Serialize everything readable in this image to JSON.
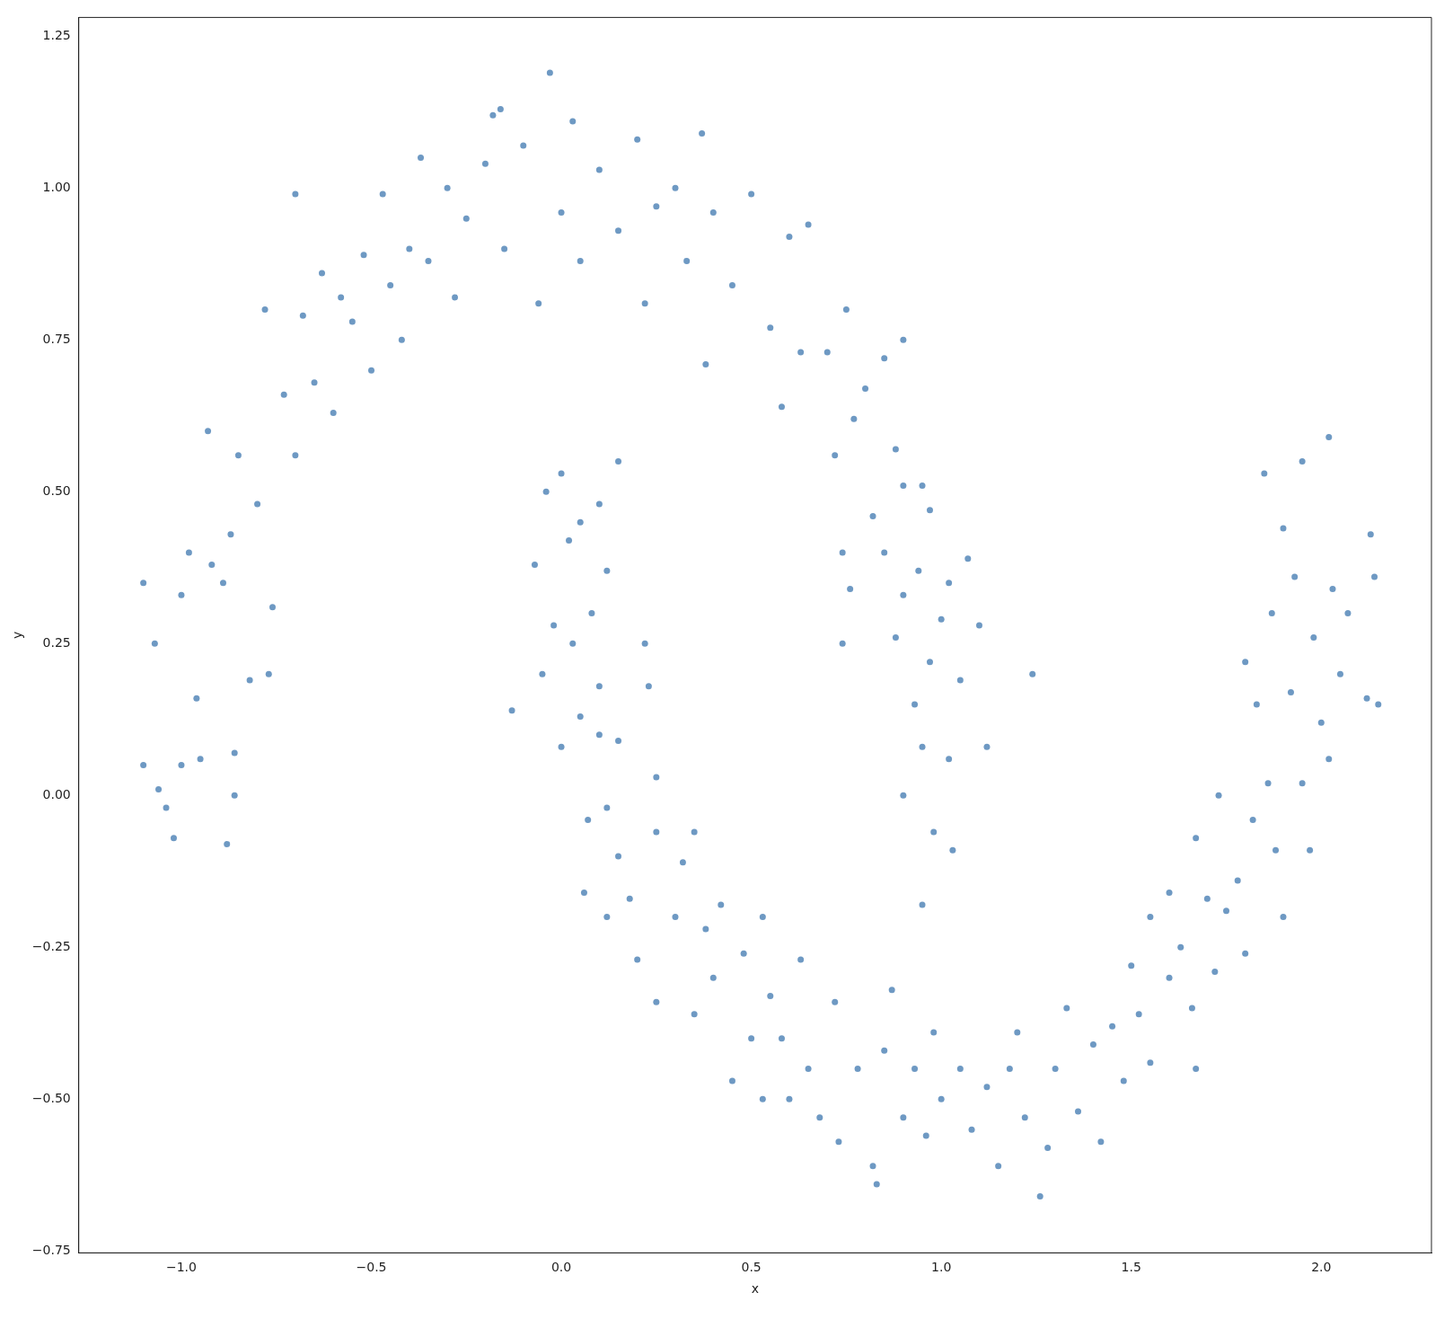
{
  "chart_data": {
    "type": "scatter",
    "xlabel": "x",
    "ylabel": "y",
    "marker": "circle",
    "color": "#4a80b4",
    "grid": false,
    "legend": false,
    "xlim": [
      -1.27,
      2.29
    ],
    "ylim": [
      -0.753,
      1.281
    ],
    "xticks": [
      {
        "value": -1,
        "label": "−1.0"
      },
      {
        "value": -0.5,
        "label": "−0.5"
      },
      {
        "value": 0,
        "label": "0.0"
      },
      {
        "value": 0.5,
        "label": "0.5"
      },
      {
        "value": 1,
        "label": "1.0"
      },
      {
        "value": 1.5,
        "label": "1.5"
      },
      {
        "value": 2,
        "label": "2.0"
      }
    ],
    "yticks": [
      {
        "value": -0.75,
        "label": "−0.75"
      },
      {
        "value": -0.5,
        "label": "−0.50"
      },
      {
        "value": -0.25,
        "label": "−0.25"
      },
      {
        "value": 0,
        "label": "0.00"
      },
      {
        "value": 0.25,
        "label": "0.25"
      },
      {
        "value": 0.5,
        "label": "0.50"
      },
      {
        "value": 0.75,
        "label": "0.75"
      },
      {
        "value": 1,
        "label": "1.00"
      },
      {
        "value": 1.25,
        "label": "1.25"
      }
    ],
    "x": [
      -1.1,
      -1.1,
      -1.07,
      -1.06,
      -1.04,
      -1.02,
      -1.0,
      -1.0,
      -0.98,
      -0.96,
      -0.95,
      -0.93,
      -0.92,
      -0.89,
      -0.88,
      -0.86,
      -0.86,
      -0.87,
      -0.85,
      -0.82,
      -0.8,
      -0.78,
      -0.76,
      -0.77,
      -0.73,
      -0.7,
      -0.7,
      -0.68,
      -0.65,
      -0.63,
      -0.6,
      -0.58,
      -0.55,
      -0.52,
      -0.5,
      -0.47,
      -0.45,
      -0.42,
      -0.4,
      -0.37,
      -0.35,
      -0.3,
      -0.28,
      -0.25,
      -0.2,
      -0.18,
      -0.16,
      -0.15,
      -0.1,
      -0.06,
      -0.03,
      0.0,
      0.03,
      0.05,
      0.1,
      0.15,
      0.2,
      0.22,
      0.25,
      0.3,
      0.33,
      0.37,
      0.38,
      0.4,
      0.45,
      0.5,
      0.55,
      0.58,
      0.6,
      0.63,
      0.65,
      0.7,
      0.72,
      0.75,
      0.77,
      0.8,
      0.82,
      0.85,
      0.88,
      0.9,
      0.9,
      0.95,
      0.97,
      0.85,
      0.88,
      0.9,
      0.9,
      0.93,
      0.94,
      0.95,
      0.95,
      0.97,
      0.98,
      1.0,
      1.02,
      1.02,
      1.03,
      1.05,
      1.07,
      1.1,
      1.12,
      1.24,
      0.74,
      0.76,
      0.74,
      -0.13,
      -0.07,
      -0.05,
      -0.04,
      -0.02,
      0.0,
      0.0,
      0.02,
      0.03,
      0.05,
      0.05,
      0.08,
      0.1,
      0.1,
      0.1,
      0.12,
      0.15,
      0.15,
      0.12,
      0.07,
      0.06,
      0.12,
      0.15,
      0.18,
      0.2,
      0.22,
      0.23,
      0.25,
      0.25,
      0.25,
      0.3,
      0.32,
      0.35,
      0.35,
      0.38,
      0.4,
      0.42,
      0.45,
      0.48,
      0.5,
      0.53,
      0.53,
      0.55,
      0.58,
      0.6,
      0.63,
      0.65,
      0.68,
      0.72,
      0.73,
      0.78,
      0.82,
      0.83,
      0.85,
      0.87,
      0.9,
      0.93,
      0.96,
      0.98,
      1.0,
      1.05,
      1.08,
      1.12,
      1.15,
      1.18,
      1.2,
      1.22,
      1.26,
      1.28,
      1.3,
      1.33,
      1.36,
      1.4,
      1.42,
      1.45,
      1.48,
      1.5,
      1.52,
      1.55,
      1.55,
      1.6,
      1.6,
      1.63,
      1.66,
      1.67,
      1.67,
      1.7,
      1.72,
      1.73,
      1.75,
      1.78,
      1.8,
      1.8,
      1.82,
      1.83,
      1.85,
      1.86,
      1.87,
      1.88,
      1.9,
      1.9,
      1.92,
      1.93,
      1.95,
      1.95,
      1.97,
      1.98,
      2.0,
      2.02,
      2.03,
      2.02,
      2.05,
      2.07,
      2.12,
      2.13,
      2.14,
      2.15
    ],
    "values": [
      0.35,
      0.05,
      0.25,
      0.01,
      -0.02,
      -0.07,
      0.33,
      0.05,
      0.4,
      0.16,
      0.06,
      0.6,
      0.38,
      0.35,
      -0.08,
      0.07,
      0.0,
      0.43,
      0.56,
      0.19,
      0.48,
      0.8,
      0.31,
      0.2,
      0.66,
      0.99,
      0.56,
      0.79,
      0.68,
      0.86,
      0.63,
      0.82,
      0.78,
      0.89,
      0.7,
      0.99,
      0.84,
      0.75,
      0.9,
      1.05,
      0.88,
      1.0,
      0.82,
      0.95,
      1.04,
      1.12,
      1.13,
      0.9,
      1.07,
      0.81,
      1.19,
      0.96,
      1.11,
      0.88,
      1.03,
      0.93,
      1.08,
      0.81,
      0.97,
      1.0,
      0.88,
      1.09,
      0.71,
      0.96,
      0.84,
      0.99,
      0.77,
      0.64,
      0.92,
      0.73,
      0.94,
      0.73,
      0.56,
      0.8,
      0.62,
      0.67,
      0.46,
      0.72,
      0.57,
      0.75,
      0.51,
      0.51,
      0.47,
      0.4,
      0.26,
      0.33,
      0.0,
      0.15,
      0.37,
      -0.18,
      0.08,
      0.22,
      -0.06,
      0.29,
      0.35,
      0.06,
      -0.09,
      0.19,
      0.39,
      0.28,
      0.08,
      0.2,
      0.25,
      0.34,
      0.4,
      0.14,
      0.38,
      0.2,
      0.5,
      0.28,
      0.08,
      0.53,
      0.42,
      0.25,
      0.13,
      0.45,
      0.3,
      0.48,
      0.18,
      0.1,
      0.37,
      0.55,
      0.09,
      -0.02,
      -0.04,
      -0.16,
      -0.2,
      -0.1,
      -0.17,
      -0.27,
      0.25,
      0.18,
      0.03,
      -0.06,
      -0.34,
      -0.2,
      -0.11,
      -0.36,
      -0.06,
      -0.22,
      -0.3,
      -0.18,
      -0.47,
      -0.26,
      -0.4,
      -0.5,
      -0.2,
      -0.33,
      -0.4,
      -0.5,
      -0.27,
      -0.45,
      -0.53,
      -0.34,
      -0.57,
      -0.45,
      -0.61,
      -0.64,
      -0.42,
      -0.32,
      -0.53,
      -0.45,
      -0.56,
      -0.39,
      -0.5,
      -0.45,
      -0.55,
      -0.48,
      -0.61,
      -0.45,
      -0.39,
      -0.53,
      -0.66,
      -0.58,
      -0.45,
      -0.35,
      -0.52,
      -0.41,
      -0.57,
      -0.38,
      -0.47,
      -0.28,
      -0.36,
      -0.2,
      -0.44,
      -0.16,
      -0.3,
      -0.25,
      -0.35,
      -0.45,
      -0.07,
      -0.17,
      -0.29,
      0.0,
      -0.19,
      -0.14,
      -0.26,
      0.22,
      -0.04,
      0.15,
      0.53,
      0.02,
      0.3,
      -0.09,
      0.44,
      -0.2,
      0.17,
      0.36,
      0.02,
      0.55,
      -0.09,
      0.26,
      0.12,
      0.59,
      0.34,
      0.06,
      0.2,
      0.3,
      0.16,
      0.43,
      0.36,
      0.15
    ]
  }
}
